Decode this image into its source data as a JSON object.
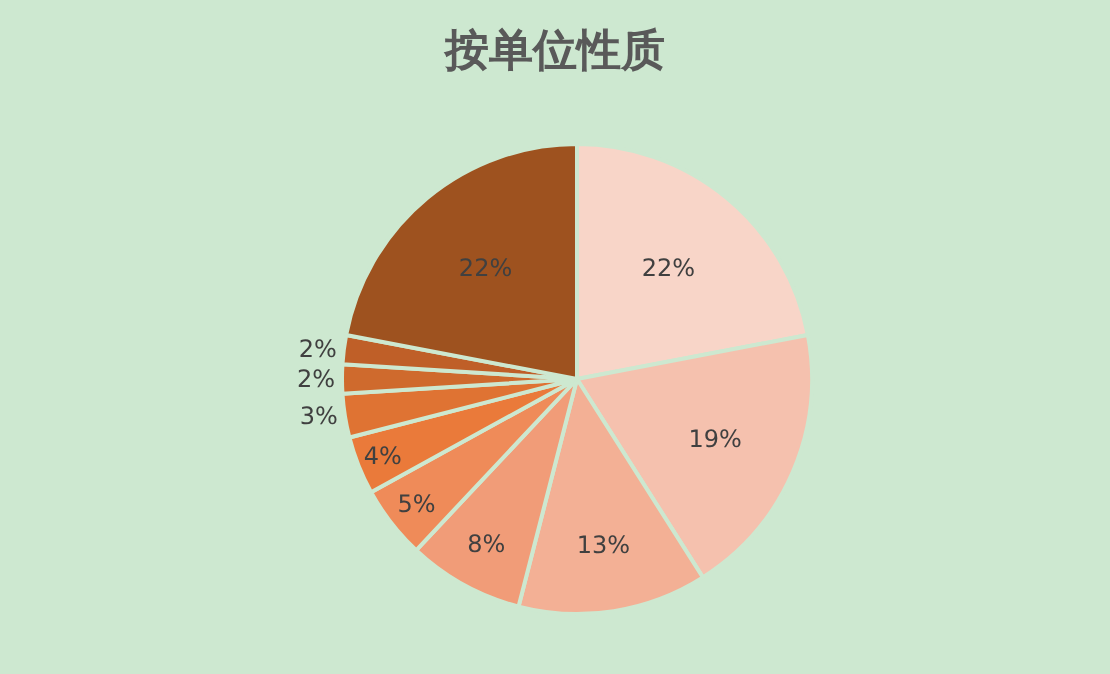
{
  "chart_data": {
    "type": "pie",
    "title": "按单位性质",
    "categories": [
      null,
      null,
      null,
      null,
      null,
      null,
      null,
      null,
      null,
      null
    ],
    "values": [
      22,
      19,
      13,
      8,
      5,
      4,
      3,
      2,
      2,
      22
    ],
    "value_labels": [
      "22%",
      "19%",
      "13%",
      "8%",
      "5%",
      "4%",
      "3%",
      "2%",
      "2%",
      "22%"
    ],
    "colors": [
      "#f8d5c8",
      "#f5c1ae",
      "#f3b095",
      "#f19c78",
      "#ef8b59",
      "#ea7a3a",
      "#df7333",
      "#cf6a2d",
      "#bf5f28",
      "#9e521f"
    ],
    "legend": false
  }
}
